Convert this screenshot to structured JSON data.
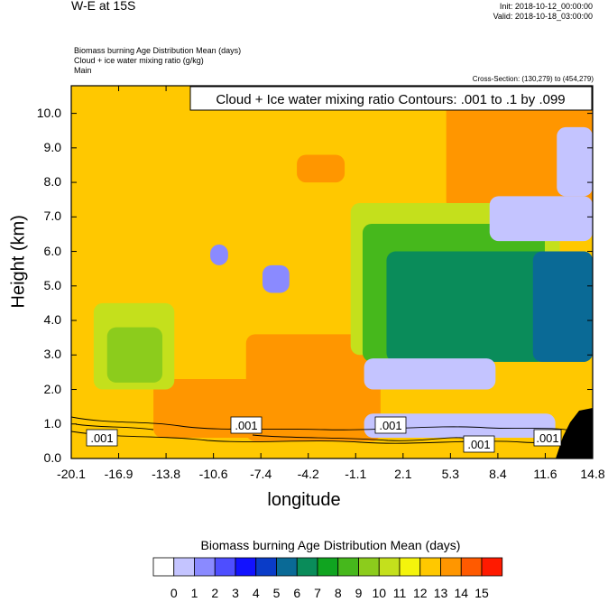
{
  "header": {
    "title": "W-E at 15S",
    "init": "Init: 2018-10-12_00:00:00",
    "valid": "Valid: 2018-10-18_03:00:00",
    "legend_lines": [
      "Biomass burning Age Distribution Mean   (days)",
      "Cloud + ice water mixing ratio   (g/kg)",
      "Main"
    ],
    "cross_section": "Cross-Section: (130,279) to (454,279)"
  },
  "chart_data": {
    "type": "heatmap",
    "title": "",
    "xlabel": "longitude",
    "ylabel": "Height (km)",
    "contour_label": "Cloud + Ice water mixing ratio Contours: .001 to .1 by .099",
    "contour_values": [
      ".001",
      ".001",
      ".001",
      ".001",
      ".001"
    ],
    "x_ticks": [
      "-20.1",
      "-16.9",
      "-13.8",
      "-10.6",
      "-7.4",
      "-4.2",
      "-1.1",
      "2.1",
      "5.3",
      "8.4",
      "11.6",
      "14.8"
    ],
    "y_ticks": [
      "0.0",
      "1.0",
      "2.0",
      "3.0",
      "4.0",
      "5.0",
      "6.0",
      "7.0",
      "8.0",
      "9.0",
      "10.0"
    ],
    "xlim": [
      -20.1,
      14.8
    ],
    "ylim": [
      0,
      10.8
    ],
    "colorbar": {
      "title": "Biomass burning Age Distribution Mean  (days)",
      "levels": [
        "0",
        "1",
        "2",
        "3",
        "4",
        "5",
        "6",
        "7",
        "8",
        "9",
        "10",
        "11",
        "12",
        "13",
        "14",
        "15"
      ],
      "colors": [
        "#ffffff",
        "#c4c4ff",
        "#8a8aff",
        "#4e4eff",
        "#1212ff",
        "#0a3cc8",
        "#0a6a96",
        "#0a8c5a",
        "#10a420",
        "#46b81c",
        "#8ccc1c",
        "#c4e01c",
        "#f4f40c",
        "#ffc800",
        "#ff9600",
        "#ff5a00",
        "#ff1a00"
      ]
    },
    "regions": [
      {
        "level": 12,
        "x": [
          -20.1,
          14.8
        ],
        "y": [
          0,
          10.8
        ]
      },
      {
        "level": 13,
        "x": [
          -8.4,
          0.6
        ],
        "y": [
          0.5,
          3.6
        ]
      },
      {
        "level": 13,
        "x": [
          -14.6,
          -7.0
        ],
        "y": [
          0.6,
          2.3
        ]
      },
      {
        "level": 13,
        "x": [
          5.0,
          14.8
        ],
        "y": [
          7.2,
          10.8
        ]
      },
      {
        "level": 13,
        "x": [
          -5.0,
          -1.8
        ],
        "y": [
          8.0,
          8.8
        ]
      },
      {
        "level": 10,
        "x": [
          -18.6,
          -13.2
        ],
        "y": [
          2.0,
          4.5
        ]
      },
      {
        "level": 9,
        "x": [
          -17.7,
          -14.0
        ],
        "y": [
          2.2,
          3.8
        ]
      },
      {
        "level": 10,
        "x": [
          -1.4,
          12.6
        ],
        "y": [
          3.0,
          7.4
        ]
      },
      {
        "level": 8,
        "x": [
          -0.6,
          11.6
        ],
        "y": [
          2.8,
          6.8
        ]
      },
      {
        "level": 6,
        "x": [
          1.0,
          14.8
        ],
        "y": [
          2.8,
          6.0
        ]
      },
      {
        "level": 5,
        "x": [
          10.8,
          14.8
        ],
        "y": [
          2.8,
          6.0
        ]
      },
      {
        "level": 1,
        "x": [
          -10.8,
          -9.6
        ],
        "y": [
          5.6,
          6.2
        ]
      },
      {
        "level": 1,
        "x": [
          -7.3,
          -5.5
        ],
        "y": [
          4.8,
          5.6
        ]
      },
      {
        "level": 0,
        "x": [
          7.9,
          14.8
        ],
        "y": [
          6.3,
          7.6
        ]
      },
      {
        "level": 0,
        "x": [
          12.4,
          14.8
        ],
        "y": [
          7.6,
          9.6
        ]
      },
      {
        "level": 0,
        "x": [
          -0.5,
          8.3
        ],
        "y": [
          2.0,
          2.9
        ]
      },
      {
        "level": 0,
        "x": [
          -0.5,
          12.3
        ],
        "y": [
          0.6,
          1.3
        ]
      }
    ]
  }
}
